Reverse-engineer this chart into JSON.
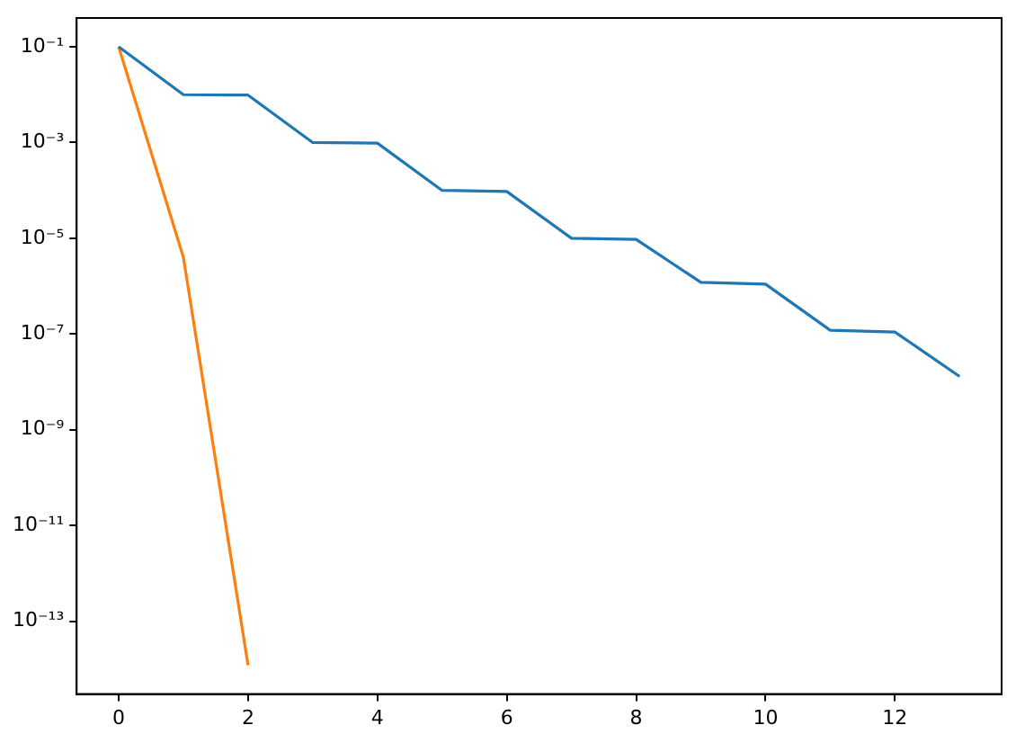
{
  "chart_data": {
    "type": "line",
    "x": [
      0,
      1,
      2,
      3,
      4,
      5,
      6,
      7,
      8,
      9,
      10,
      11,
      12,
      13
    ],
    "series": [
      {
        "color": "#1f77b4",
        "values": [
          0.1,
          0.01,
          0.0098,
          0.001,
          0.00097,
          0.0001,
          9.5e-05,
          1e-05,
          9.5e-06,
          1.2e-06,
          1.1e-06,
          1.2e-07,
          1.1e-07,
          1.3e-08
        ]
      },
      {
        "color": "#ff7f0e",
        "x": [
          0,
          1,
          2
        ],
        "values": [
          0.1,
          4e-06,
          1.2e-14
        ]
      }
    ],
    "log": "y",
    "xlim": [
      -0.65,
      13.65
    ],
    "xticks": [
      0,
      2,
      4,
      6,
      8,
      10,
      12
    ],
    "ylim": [
      3e-15,
      0.4
    ],
    "yticks": [
      {
        "value": 0.1,
        "label": "10⁻¹"
      },
      {
        "value": 0.001,
        "label": "10⁻³"
      },
      {
        "value": 1e-05,
        "label": "10⁻⁵"
      },
      {
        "value": 1e-07,
        "label": "10⁻⁷"
      },
      {
        "value": 1e-09,
        "label": "10⁻⁹"
      },
      {
        "value": 1e-11,
        "label": "10⁻¹¹"
      },
      {
        "value": 1e-13,
        "label": "10⁻¹³"
      }
    ],
    "grid": false,
    "legend": false,
    "marker": "none",
    "line_style": "solid"
  }
}
